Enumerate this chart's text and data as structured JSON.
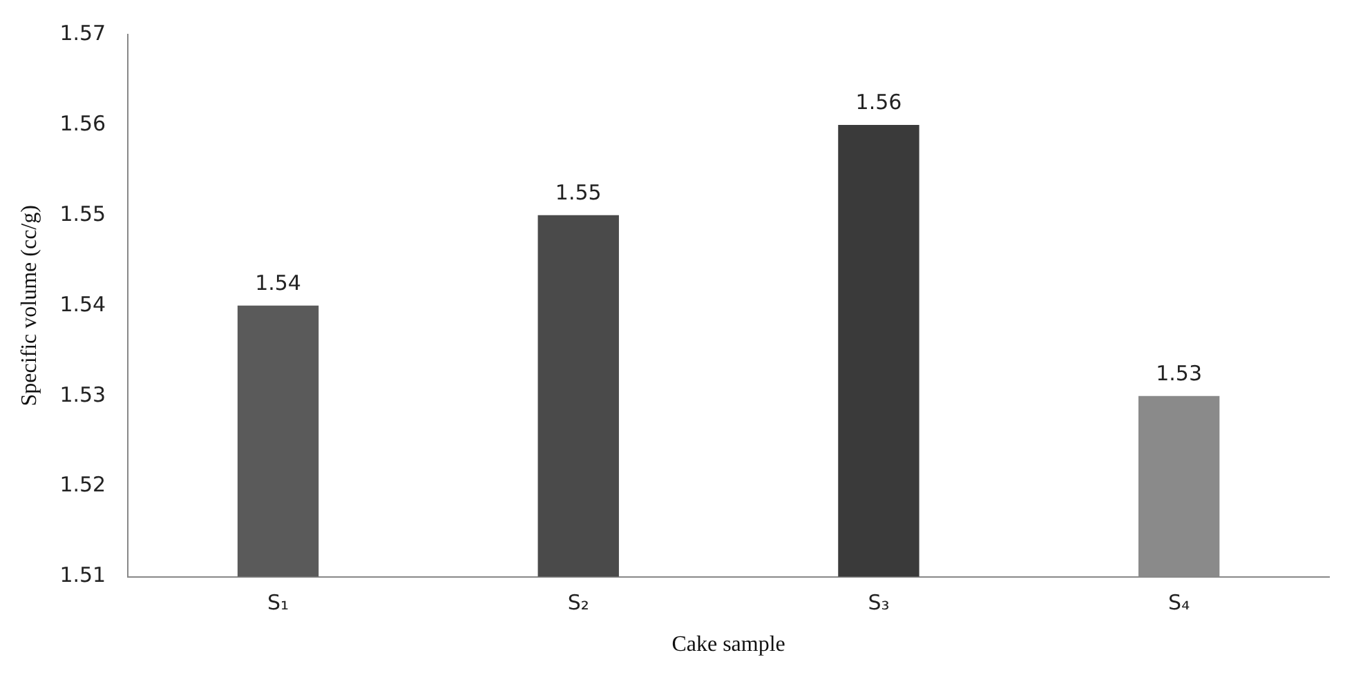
{
  "chart_data": {
    "type": "bar",
    "xlabel": "Cake sample",
    "ylabel": "Specific volume (cc/g)",
    "categories": [
      "S₁",
      "S₂",
      "S₃",
      "S₄"
    ],
    "values": [
      1.54,
      1.55,
      1.56,
      1.53
    ],
    "colors": [
      "#5a5a5a",
      "#4a4a4a",
      "#3a3a3a",
      "#8a8a8a"
    ],
    "ylim": [
      1.51,
      1.57
    ],
    "yticks": [
      1.51,
      1.52,
      1.53,
      1.54,
      1.55,
      1.56,
      1.57
    ],
    "grid": false,
    "legend": false,
    "data_labels": true
  }
}
